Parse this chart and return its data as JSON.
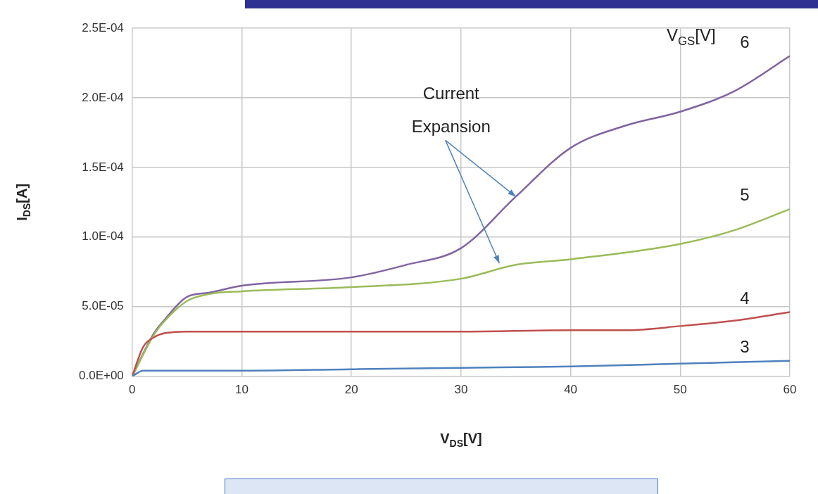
{
  "chart_data": {
    "type": "line",
    "xlabel": "V$_{DS}$[V]",
    "ylabel": "I$_{DS}$[A]",
    "legend_title": "V$_{GS}$[V]",
    "xlim": [
      0,
      60
    ],
    "xticks": [
      0,
      10,
      20,
      30,
      40,
      50,
      60
    ],
    "ylim": [
      0,
      0.00025
    ],
    "yticks": [
      {
        "value": 0,
        "label": "0.0E+00"
      },
      {
        "value": 5e-05,
        "label": "5.0E-05"
      },
      {
        "value": 0.0001,
        "label": "1.0E-04"
      },
      {
        "value": 0.00015,
        "label": "1.5E-04"
      },
      {
        "value": 0.0002,
        "label": "2.0E-04"
      },
      {
        "value": 0.00025,
        "label": "2.5E-04"
      }
    ],
    "grid": true,
    "legend": false,
    "marker": "none",
    "line_style": "solid",
    "annotations": [
      {
        "text": "Current Expansion",
        "x": 35,
        "y": 0.000129
      }
    ],
    "series": [
      {
        "name": "3",
        "color": "#4f81bd",
        "x": [
          0,
          1,
          3,
          10,
          20,
          30,
          40,
          50,
          60
        ],
        "values": [
          0,
          4e-06,
          4e-06,
          4e-06,
          5e-06,
          6e-06,
          7e-06,
          9e-06,
          1.1e-05
        ]
      },
      {
        "name": "4",
        "color": "#c0504d",
        "x": [
          0,
          1,
          2,
          3,
          5,
          10,
          20,
          30,
          40,
          45,
          50,
          55,
          60
        ],
        "values": [
          0,
          2.1e-05,
          2.8e-05,
          3.1e-05,
          3.2e-05,
          3.2e-05,
          3.2e-05,
          3.2e-05,
          3.3e-05,
          3.3e-05,
          3.6e-05,
          4e-05,
          4.6e-05
        ]
      },
      {
        "name": "5",
        "color": "#9bbb59",
        "x": [
          0,
          2,
          3,
          5,
          7,
          10,
          20,
          30,
          35,
          40,
          50,
          55,
          60
        ],
        "values": [
          0,
          3e-05,
          4e-05,
          5.4e-05,
          5.9e-05,
          6.1e-05,
          6.4e-05,
          7e-05,
          8e-05,
          8.4e-05,
          9.5e-05,
          0.000105,
          0.00012
        ]
      },
      {
        "name": "6",
        "color": "#8064a2",
        "x": [
          0,
          2,
          3,
          5,
          7,
          10,
          20,
          25,
          30,
          35,
          40,
          45,
          50,
          55,
          60
        ],
        "values": [
          0,
          3.1e-05,
          4.1e-05,
          5.7e-05,
          6e-05,
          6.5e-05,
          7.1e-05,
          8e-05,
          9.2e-05,
          0.000129,
          0.000164,
          0.00018,
          0.00019,
          0.000205,
          0.00023
        ]
      }
    ]
  }
}
